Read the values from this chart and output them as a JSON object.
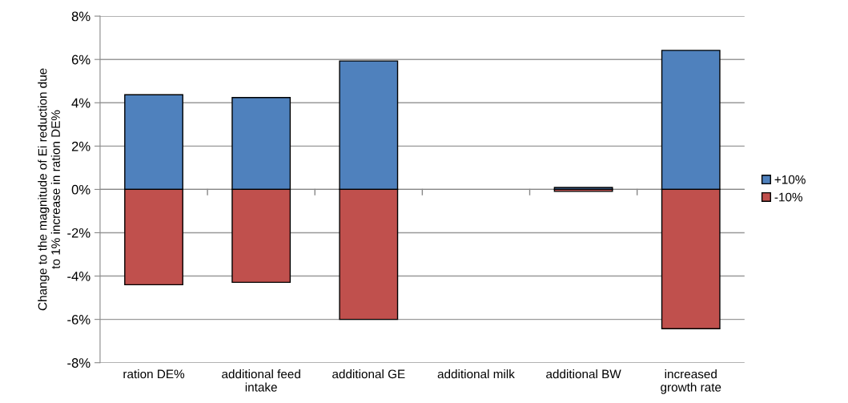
{
  "chart_data": {
    "type": "bar",
    "stacked": true,
    "ylabel": "Change to the magnitude of Ei reduction due\nto 1% increase in ration DE%",
    "categories": [
      "ration DE%",
      "additional feed\nintake",
      "additional GE",
      "additional milk",
      "additional BW",
      "increased\ngrowth rate"
    ],
    "series": [
      {
        "name": "+10%",
        "color": "#4f81bd",
        "values": [
          4.37,
          4.24,
          5.93,
          null,
          0.09,
          6.42
        ]
      },
      {
        "name": "-10%",
        "color": "#c0504d",
        "values": [
          -4.4,
          -4.29,
          -6.0,
          null,
          -0.09,
          -6.43
        ]
      }
    ],
    "ylim": [
      -8,
      8
    ],
    "yticks": [
      {
        "value": -8,
        "label": "-8%"
      },
      {
        "value": -6,
        "label": "-6%"
      },
      {
        "value": -4,
        "label": "-4%"
      },
      {
        "value": -2,
        "label": "-2%"
      },
      {
        "value": 0,
        "label": "0%"
      },
      {
        "value": 2,
        "label": "2%"
      },
      {
        "value": 4,
        "label": "4%"
      },
      {
        "value": 6,
        "label": "6%"
      },
      {
        "value": 8,
        "label": "8%"
      }
    ],
    "grid": "y",
    "legend": "right"
  }
}
